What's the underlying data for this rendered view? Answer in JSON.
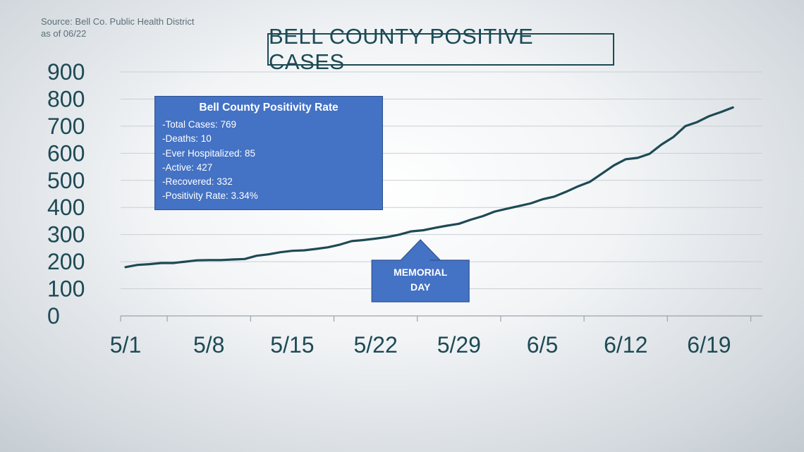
{
  "source": {
    "line1": "Source: Bell Co. Public Health District",
    "line2": "as of 06/22"
  },
  "info_box": {
    "title": "Bell County Positivity Rate",
    "lines": [
      "-Total Cases: 769",
      "-Deaths: 10",
      "-Ever Hospitalized: 85",
      "-Active: 427",
      "-Recovered: 332",
      "-Positivity Rate: 3.34%"
    ]
  },
  "colors": {
    "line": "#1d4a55",
    "box_fill": "#4472c4",
    "grid": "#c9cfd4"
  },
  "chart_data": {
    "type": "line",
    "title": "BELL COUNTY POSITIVE CASES",
    "xlabel": "",
    "ylabel": "",
    "ylim": [
      0,
      900
    ],
    "y_ticks": [
      "0",
      "100",
      "200",
      "300",
      "400",
      "500",
      "600",
      "700",
      "800",
      "900"
    ],
    "x_ticks": [
      {
        "label": "5/1",
        "day": 0
      },
      {
        "label": "5/8",
        "day": 7
      },
      {
        "label": "5/15",
        "day": 14
      },
      {
        "label": "5/22",
        "day": 21
      },
      {
        "label": "5/29",
        "day": 28
      },
      {
        "label": "6/5",
        "day": 35
      },
      {
        "label": "6/12",
        "day": 42
      },
      {
        "label": "6/19",
        "day": 49
      }
    ],
    "x_range_days": [
      0,
      53
    ],
    "grid": "horizontal",
    "legend": "none",
    "series": [
      {
        "values": [
          [
            0,
            180
          ],
          [
            1,
            188
          ],
          [
            2,
            191
          ],
          [
            3,
            195
          ],
          [
            4,
            195
          ],
          [
            5,
            200
          ],
          [
            6,
            205
          ],
          [
            7,
            206
          ],
          [
            8,
            206
          ],
          [
            9,
            208
          ],
          [
            10,
            210
          ],
          [
            11,
            222
          ],
          [
            12,
            227
          ],
          [
            13,
            235
          ],
          [
            14,
            240
          ],
          [
            15,
            242
          ],
          [
            16,
            247
          ],
          [
            17,
            253
          ],
          [
            18,
            263
          ],
          [
            19,
            276
          ],
          [
            20,
            280
          ],
          [
            21,
            285
          ],
          [
            22,
            291
          ],
          [
            23,
            300
          ],
          [
            24,
            312
          ],
          [
            25,
            316
          ],
          [
            26,
            325
          ],
          [
            27,
            333
          ],
          [
            28,
            340
          ],
          [
            29,
            355
          ],
          [
            30,
            368
          ],
          [
            31,
            385
          ],
          [
            32,
            395
          ],
          [
            33,
            405
          ],
          [
            34,
            415
          ],
          [
            35,
            430
          ],
          [
            36,
            440
          ],
          [
            37,
            458
          ],
          [
            38,
            478
          ],
          [
            39,
            495
          ],
          [
            40,
            525
          ],
          [
            41,
            555
          ],
          [
            42,
            578
          ],
          [
            43,
            583
          ],
          [
            44,
            598
          ],
          [
            45,
            632
          ],
          [
            46,
            660
          ],
          [
            47,
            700
          ],
          [
            48,
            715
          ],
          [
            49,
            737
          ],
          [
            50,
            752
          ],
          [
            51,
            769
          ]
        ]
      }
    ],
    "annotations": [
      {
        "label_lines": [
          "MEMORIAL",
          "DAY"
        ],
        "day": 25,
        "shape": "up-arrow"
      }
    ]
  }
}
